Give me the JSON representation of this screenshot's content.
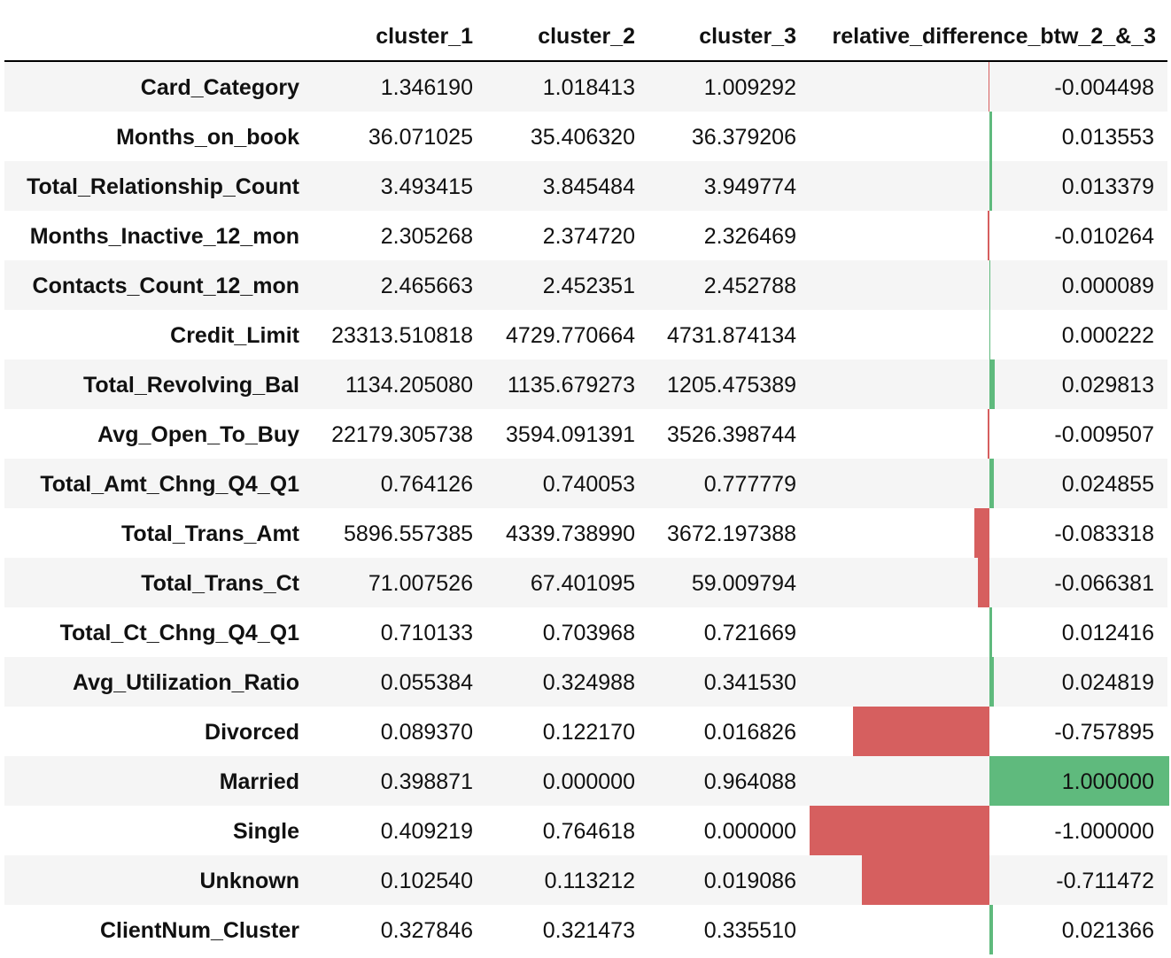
{
  "table": {
    "columns": [
      "cluster_1",
      "cluster_2",
      "cluster_3",
      "relative_difference_btw_2_&_3"
    ],
    "colors": {
      "positive": "#5fba7d",
      "negative": "#d65f5f",
      "stripe": "#f5f5f5"
    },
    "rows": [
      {
        "label": "Card_Category",
        "values": [
          "1.346190",
          "1.018413",
          "1.009292"
        ],
        "diff": "-0.004498",
        "diff_num": -0.004498
      },
      {
        "label": "Months_on_book",
        "values": [
          "36.071025",
          "35.406320",
          "36.379206"
        ],
        "diff": "0.013553",
        "diff_num": 0.013553
      },
      {
        "label": "Total_Relationship_Count",
        "values": [
          "3.493415",
          "3.845484",
          "3.949774"
        ],
        "diff": "0.013379",
        "diff_num": 0.013379
      },
      {
        "label": "Months_Inactive_12_mon",
        "values": [
          "2.305268",
          "2.374720",
          "2.326469"
        ],
        "diff": "-0.010264",
        "diff_num": -0.010264
      },
      {
        "label": "Contacts_Count_12_mon",
        "values": [
          "2.465663",
          "2.452351",
          "2.452788"
        ],
        "diff": "0.000089",
        "diff_num": 8.9e-05
      },
      {
        "label": "Credit_Limit",
        "values": [
          "23313.510818",
          "4729.770664",
          "4731.874134"
        ],
        "diff": "0.000222",
        "diff_num": 0.000222
      },
      {
        "label": "Total_Revolving_Bal",
        "values": [
          "1134.205080",
          "1135.679273",
          "1205.475389"
        ],
        "diff": "0.029813",
        "diff_num": 0.029813
      },
      {
        "label": "Avg_Open_To_Buy",
        "values": [
          "22179.305738",
          "3594.091391",
          "3526.398744"
        ],
        "diff": "-0.009507",
        "diff_num": -0.009507
      },
      {
        "label": "Total_Amt_Chng_Q4_Q1",
        "values": [
          "0.764126",
          "0.740053",
          "0.777779"
        ],
        "diff": "0.024855",
        "diff_num": 0.024855
      },
      {
        "label": "Total_Trans_Amt",
        "values": [
          "5896.557385",
          "4339.738990",
          "3672.197388"
        ],
        "diff": "-0.083318",
        "diff_num": -0.083318
      },
      {
        "label": "Total_Trans_Ct",
        "values": [
          "71.007526",
          "67.401095",
          "59.009794"
        ],
        "diff": "-0.066381",
        "diff_num": -0.066381
      },
      {
        "label": "Total_Ct_Chng_Q4_Q1",
        "values": [
          "0.710133",
          "0.703968",
          "0.721669"
        ],
        "diff": "0.012416",
        "diff_num": 0.012416
      },
      {
        "label": "Avg_Utilization_Ratio",
        "values": [
          "0.055384",
          "0.324988",
          "0.341530"
        ],
        "diff": "0.024819",
        "diff_num": 0.024819
      },
      {
        "label": "Divorced",
        "values": [
          "0.089370",
          "0.122170",
          "0.016826"
        ],
        "diff": "-0.757895",
        "diff_num": -0.757895
      },
      {
        "label": "Married",
        "values": [
          "0.398871",
          "0.000000",
          "0.964088"
        ],
        "diff": "1.000000",
        "diff_num": 1.0
      },
      {
        "label": "Single",
        "values": [
          "0.409219",
          "0.764618",
          "0.000000"
        ],
        "diff": "-1.000000",
        "diff_num": -1.0
      },
      {
        "label": "Unknown",
        "values": [
          "0.102540",
          "0.113212",
          "0.019086"
        ],
        "diff": "-0.711472",
        "diff_num": -0.711472
      },
      {
        "label": "ClientNum_Cluster",
        "values": [
          "0.327846",
          "0.321473",
          "0.335510"
        ],
        "diff": "0.021366",
        "diff_num": 0.021366
      }
    ]
  }
}
